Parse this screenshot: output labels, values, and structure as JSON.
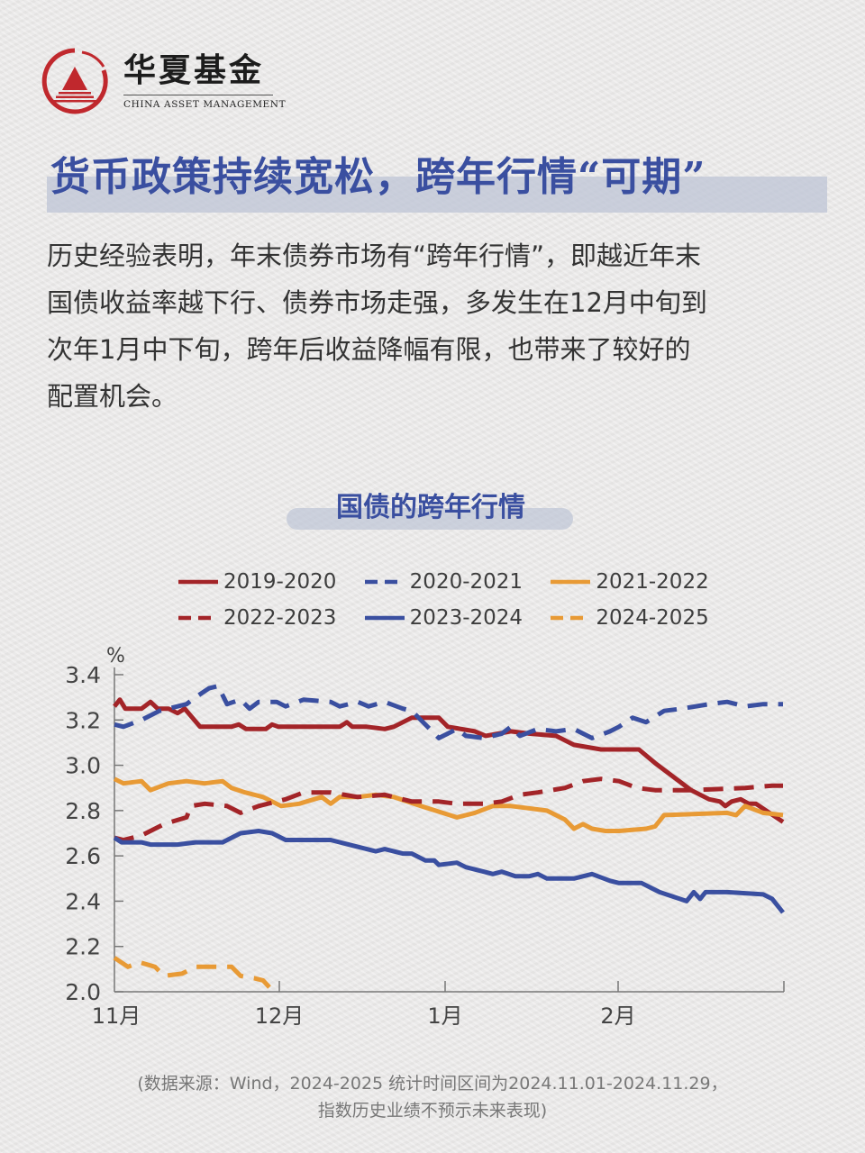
{
  "brand": {
    "name_cn": "华夏基金",
    "name_en": "CHINA ASSET MANAGEMENT",
    "logo_icon": "triangle-in-circle-icon",
    "color": "#c0282d"
  },
  "headline": "货币政策持续宽松，跨年行情“可期”",
  "body": {
    "lines": [
      "历史经验表明，年末债券市场有“跨年行情”，即越近年末",
      "国债收益率越下行、债券市场走强，多发生在12月中旬到",
      "次年1月中下旬，跨年后收益降幅有限，也带来了较好的",
      "配置机会。"
    ]
  },
  "colors": {
    "accent_blue": "#3a4fa0",
    "dark_red": "#a32428",
    "orange": "#e89a35",
    "text": "#333333"
  },
  "source_note": {
    "line1": "(数据来源：Wind，2024-2025 统计时间区间为2024.11.01-2024.11.29，",
    "line2": "指数历史业绩不预示未来表现)"
  },
  "chart_data": {
    "type": "line",
    "title": "国债的跨年行情",
    "xlabel": "",
    "ylabel": "%",
    "ylim": [
      2.0,
      3.4
    ],
    "yticks": [
      "3.4",
      "3.2",
      "3.0",
      "2.8",
      "2.6",
      "2.4",
      "2.2",
      "2.0"
    ],
    "xticks": [
      "11月",
      "12月",
      "1月",
      "2月"
    ],
    "x_domain_note": "x = pixel offset along axis (0 = 11月 start, 183 = 12月, 367 = 1月, 559 = 2月, 743 = end)",
    "grid": false,
    "legend_position": "top",
    "legend": [
      {
        "name": "2019-2020",
        "color": "#a32428",
        "dash": "solid"
      },
      {
        "name": "2020-2021",
        "color": "#3a4fa0",
        "dash": "dashed"
      },
      {
        "name": "2021-2022",
        "color": "#e89a35",
        "dash": "solid"
      },
      {
        "name": "2022-2023",
        "color": "#a32428",
        "dash": "dashed"
      },
      {
        "name": "2023-2024",
        "color": "#3a4fa0",
        "dash": "solid"
      },
      {
        "name": "2024-2025",
        "color": "#e89a35",
        "dash": "dashed"
      }
    ],
    "series": [
      {
        "name": "2019-2020",
        "color": "#a32428",
        "dash": "solid",
        "points": [
          [
            0,
            3.26
          ],
          [
            6,
            3.29
          ],
          [
            12,
            3.25
          ],
          [
            30,
            3.25
          ],
          [
            40,
            3.28
          ],
          [
            48,
            3.25
          ],
          [
            60,
            3.25
          ],
          [
            70,
            3.23
          ],
          [
            78,
            3.25
          ],
          [
            95,
            3.17
          ],
          [
            130,
            3.17
          ],
          [
            138,
            3.18
          ],
          [
            146,
            3.16
          ],
          [
            168,
            3.16
          ],
          [
            175,
            3.18
          ],
          [
            182,
            3.17
          ],
          [
            215,
            3.17
          ],
          [
            250,
            3.17
          ],
          [
            258,
            3.19
          ],
          [
            264,
            3.17
          ],
          [
            280,
            3.17
          ],
          [
            300,
            3.16
          ],
          [
            310,
            3.17
          ],
          [
            330,
            3.21
          ],
          [
            360,
            3.21
          ],
          [
            370,
            3.17
          ],
          [
            400,
            3.15
          ],
          [
            412,
            3.13
          ],
          [
            440,
            3.15
          ],
          [
            460,
            3.14
          ],
          [
            490,
            3.13
          ],
          [
            510,
            3.09
          ],
          [
            540,
            3.07
          ],
          [
            582,
            3.07
          ],
          [
            600,
            3.01
          ],
          [
            640,
            2.89
          ],
          [
            660,
            2.85
          ],
          [
            672,
            2.84
          ],
          [
            678,
            2.82
          ],
          [
            685,
            2.84
          ],
          [
            695,
            2.85
          ],
          [
            704,
            2.83
          ],
          [
            712,
            2.83
          ],
          [
            742,
            2.75
          ]
        ]
      },
      {
        "name": "2020-2021",
        "color": "#3a4fa0",
        "dash": "dashed",
        "points": [
          [
            0,
            3.18
          ],
          [
            10,
            3.17
          ],
          [
            30,
            3.2
          ],
          [
            50,
            3.24
          ],
          [
            80,
            3.27
          ],
          [
            90,
            3.3
          ],
          [
            105,
            3.34
          ],
          [
            115,
            3.35
          ],
          [
            125,
            3.27
          ],
          [
            140,
            3.29
          ],
          [
            150,
            3.25
          ],
          [
            160,
            3.28
          ],
          [
            180,
            3.28
          ],
          [
            190,
            3.26
          ],
          [
            210,
            3.29
          ],
          [
            240,
            3.28
          ],
          [
            250,
            3.26
          ],
          [
            270,
            3.28
          ],
          [
            282,
            3.26
          ],
          [
            300,
            3.28
          ],
          [
            320,
            3.25
          ],
          [
            330,
            3.24
          ],
          [
            345,
            3.18
          ],
          [
            360,
            3.12
          ],
          [
            370,
            3.14
          ],
          [
            380,
            3.16
          ],
          [
            390,
            3.13
          ],
          [
            410,
            3.12
          ],
          [
            430,
            3.14
          ],
          [
            440,
            3.17
          ],
          [
            450,
            3.13
          ],
          [
            470,
            3.16
          ],
          [
            490,
            3.15
          ],
          [
            510,
            3.16
          ],
          [
            530,
            3.12
          ],
          [
            550,
            3.15
          ],
          [
            560,
            3.17
          ],
          [
            575,
            3.21
          ],
          [
            590,
            3.19
          ],
          [
            610,
            3.24
          ],
          [
            630,
            3.25
          ],
          [
            660,
            3.27
          ],
          [
            680,
            3.28
          ],
          [
            700,
            3.26
          ],
          [
            720,
            3.27
          ],
          [
            742,
            3.27
          ]
        ]
      },
      {
        "name": "2021-2022",
        "color": "#e89a35",
        "dash": "solid",
        "points": [
          [
            0,
            2.94
          ],
          [
            10,
            2.92
          ],
          [
            30,
            2.93
          ],
          [
            40,
            2.89
          ],
          [
            60,
            2.92
          ],
          [
            80,
            2.93
          ],
          [
            100,
            2.92
          ],
          [
            120,
            2.93
          ],
          [
            130,
            2.9
          ],
          [
            145,
            2.88
          ],
          [
            165,
            2.86
          ],
          [
            185,
            2.82
          ],
          [
            205,
            2.83
          ],
          [
            230,
            2.86
          ],
          [
            240,
            2.83
          ],
          [
            250,
            2.86
          ],
          [
            270,
            2.86
          ],
          [
            290,
            2.87
          ],
          [
            310,
            2.86
          ],
          [
            340,
            2.82
          ],
          [
            380,
            2.77
          ],
          [
            400,
            2.79
          ],
          [
            420,
            2.82
          ],
          [
            440,
            2.82
          ],
          [
            460,
            2.81
          ],
          [
            480,
            2.8
          ],
          [
            500,
            2.76
          ],
          [
            510,
            2.72
          ],
          [
            520,
            2.74
          ],
          [
            530,
            2.72
          ],
          [
            545,
            2.71
          ],
          [
            560,
            2.71
          ],
          [
            590,
            2.72
          ],
          [
            600,
            2.73
          ],
          [
            610,
            2.78
          ],
          [
            680,
            2.79
          ],
          [
            690,
            2.78
          ],
          [
            700,
            2.82
          ],
          [
            720,
            2.79
          ],
          [
            742,
            2.78
          ]
        ]
      },
      {
        "name": "2022-2023",
        "color": "#a32428",
        "dash": "dashed",
        "points": [
          [
            0,
            2.68
          ],
          [
            10,
            2.67
          ],
          [
            30,
            2.69
          ],
          [
            55,
            2.74
          ],
          [
            80,
            2.77
          ],
          [
            85,
            2.82
          ],
          [
            100,
            2.83
          ],
          [
            125,
            2.82
          ],
          [
            140,
            2.79
          ],
          [
            160,
            2.82
          ],
          [
            190,
            2.85
          ],
          [
            210,
            2.88
          ],
          [
            240,
            2.88
          ],
          [
            270,
            2.86
          ],
          [
            300,
            2.87
          ],
          [
            330,
            2.84
          ],
          [
            360,
            2.84
          ],
          [
            380,
            2.83
          ],
          [
            410,
            2.83
          ],
          [
            430,
            2.84
          ],
          [
            450,
            2.87
          ],
          [
            470,
            2.88
          ],
          [
            500,
            2.9
          ],
          [
            520,
            2.93
          ],
          [
            540,
            2.94
          ],
          [
            560,
            2.93
          ],
          [
            580,
            2.9
          ],
          [
            600,
            2.89
          ],
          [
            640,
            2.89
          ],
          [
            700,
            2.9
          ],
          [
            730,
            2.91
          ],
          [
            742,
            2.91
          ]
        ]
      },
      {
        "name": "2023-2024",
        "color": "#3a4fa0",
        "dash": "solid",
        "points": [
          [
            0,
            2.68
          ],
          [
            8,
            2.66
          ],
          [
            30,
            2.66
          ],
          [
            40,
            2.65
          ],
          [
            70,
            2.65
          ],
          [
            90,
            2.66
          ],
          [
            100,
            2.66
          ],
          [
            120,
            2.66
          ],
          [
            140,
            2.7
          ],
          [
            160,
            2.71
          ],
          [
            175,
            2.7
          ],
          [
            190,
            2.67
          ],
          [
            205,
            2.67
          ],
          [
            240,
            2.67
          ],
          [
            260,
            2.65
          ],
          [
            270,
            2.64
          ],
          [
            290,
            2.62
          ],
          [
            300,
            2.63
          ],
          [
            320,
            2.61
          ],
          [
            330,
            2.61
          ],
          [
            345,
            2.58
          ],
          [
            355,
            2.58
          ],
          [
            360,
            2.56
          ],
          [
            380,
            2.57
          ],
          [
            390,
            2.55
          ],
          [
            410,
            2.53
          ],
          [
            420,
            2.52
          ],
          [
            430,
            2.53
          ],
          [
            445,
            2.51
          ],
          [
            460,
            2.51
          ],
          [
            470,
            2.52
          ],
          [
            480,
            2.5
          ],
          [
            510,
            2.5
          ],
          [
            530,
            2.52
          ],
          [
            550,
            2.49
          ],
          [
            560,
            2.48
          ],
          [
            585,
            2.48
          ],
          [
            600,
            2.45
          ],
          [
            605,
            2.44
          ],
          [
            620,
            2.42
          ],
          [
            635,
            2.4
          ],
          [
            643,
            2.44
          ],
          [
            650,
            2.41
          ],
          [
            656,
            2.44
          ],
          [
            680,
            2.44
          ],
          [
            720,
            2.43
          ],
          [
            730,
            2.41
          ],
          [
            742,
            2.35
          ]
        ]
      },
      {
        "name": "2024-2025",
        "color": "#e89a35",
        "dash": "dashed",
        "points": [
          [
            0,
            2.15
          ],
          [
            15,
            2.11
          ],
          [
            28,
            2.13
          ],
          [
            45,
            2.11
          ],
          [
            55,
            2.07
          ],
          [
            75,
            2.08
          ],
          [
            90,
            2.11
          ],
          [
            110,
            2.11
          ],
          [
            130,
            2.11
          ],
          [
            140,
            2.07
          ],
          [
            155,
            2.06
          ],
          [
            165,
            2.05
          ],
          [
            172,
            2.02
          ]
        ]
      }
    ]
  }
}
